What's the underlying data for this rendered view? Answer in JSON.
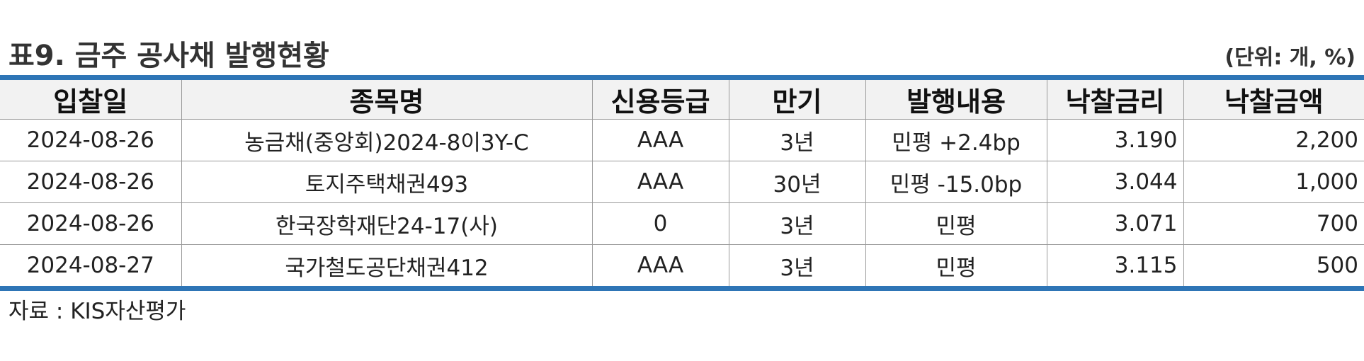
{
  "title": "표9. 금주 공사채 발행현황",
  "unit": "(단위: 개, %)",
  "table": {
    "headers": [
      "입찰일",
      "종목명",
      "신용등급",
      "만기",
      "발행내용",
      "낙찰금리",
      "낙찰금액"
    ],
    "rows": [
      [
        "2024-08-26",
        "농금채(중앙회)2024-8이3Y-C",
        "AAA",
        "3년",
        "민평 +2.4bp",
        "3.190",
        "2,200"
      ],
      [
        "2024-08-26",
        "토지주택채권493",
        "AAA",
        "30년",
        "민평 -15.0bp",
        "3.044",
        "1,000"
      ],
      [
        "2024-08-26",
        "한국장학재단24-17(사)",
        "0",
        "3년",
        "민평",
        "3.071",
        "700"
      ],
      [
        "2024-08-27",
        "국가철도공단채권412",
        "AAA",
        "3년",
        "민평",
        "3.115",
        "500"
      ]
    ]
  },
  "source": "자료 : KIS자산평가",
  "colors": {
    "accent": "#2e75b6",
    "header_bg": "#f2f2f2",
    "grid": "#9a9a9a"
  }
}
